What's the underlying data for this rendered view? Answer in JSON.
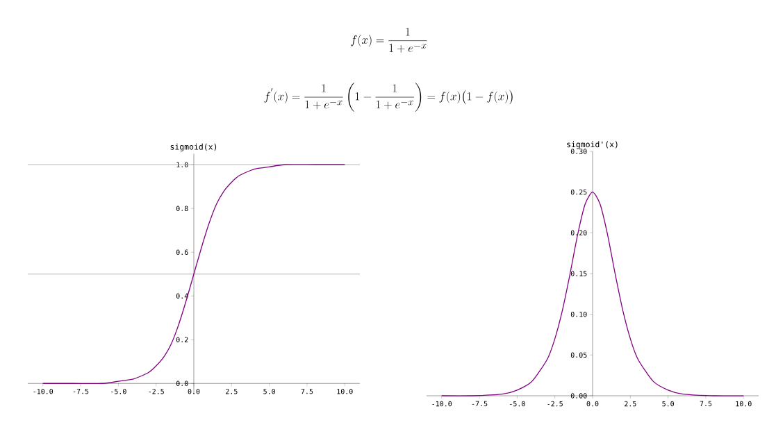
{
  "chart_data": [
    {
      "type": "line",
      "title": "sigmoid(x)",
      "color": "#800080",
      "annotations": [
        "f(x) = \\frac{1}{1+e^{-x}}",
        "f^{'}(x) = \\frac{1}{1+e^{-x}}\\left(1-\\frac{1}{1+e^{-x}}\\right) = f(x)\\big(1-f(x)\\big)"
      ],
      "x": [
        -10,
        -8,
        -6,
        -5,
        -4,
        -3,
        -2.5,
        -2,
        -1.5,
        -1,
        -0.5,
        0,
        0.5,
        1,
        1.5,
        2,
        2.5,
        3,
        4,
        5,
        6,
        8,
        10
      ],
      "values": [
        0,
        0,
        0,
        0.01,
        0.02,
        0.05,
        0.08,
        0.12,
        0.18,
        0.27,
        0.38,
        0.5,
        0.62,
        0.73,
        0.82,
        0.88,
        0.92,
        0.95,
        0.98,
        0.99,
        1.0,
        1.0,
        1.0
      ],
      "xlim": [
        -11,
        11
      ],
      "ylim": [
        -0.05,
        1.05
      ],
      "xticks": [
        {
          "value": -10,
          "label": "-10.0"
        },
        {
          "value": -7.5,
          "label": "-7.5"
        },
        {
          "value": -5,
          "label": "-5.0"
        },
        {
          "value": -2.5,
          "label": "-2.5"
        },
        {
          "value": 0,
          "label": "0.0"
        },
        {
          "value": 2.5,
          "label": "2.5"
        },
        {
          "value": 5,
          "label": "5.0"
        },
        {
          "value": 7.5,
          "label": "7.5"
        },
        {
          "value": 10,
          "label": "10.0"
        }
      ],
      "yticks": [
        {
          "value": 0,
          "label": "0.0"
        },
        0.2,
        0.4,
        0.6,
        0.8,
        {
          "value": 1,
          "label": "1.0"
        }
      ],
      "ref_lines": [
        {
          "axis": "y",
          "value": 0.5,
          "color": "#a0a0a0"
        },
        {
          "axis": "y",
          "value": 1.0,
          "color": "#a0a0a0"
        }
      ]
    },
    {
      "type": "line",
      "title": "sigmoid'(x)",
      "color": "#800080",
      "x": [
        -10,
        -8,
        -6,
        -5,
        -4,
        -3,
        -2.5,
        -2,
        -1.5,
        -1,
        -0.5,
        0,
        0.5,
        1,
        1.5,
        2,
        2.5,
        3,
        4,
        5,
        6,
        8,
        10
      ],
      "values": [
        0,
        0,
        0.002,
        0.007,
        0.018,
        0.045,
        0.07,
        0.105,
        0.149,
        0.197,
        0.235,
        0.25,
        0.235,
        0.197,
        0.149,
        0.105,
        0.07,
        0.045,
        0.018,
        0.007,
        0.002,
        0,
        0
      ],
      "xlim": [
        -11,
        11
      ],
      "ylim": [
        0,
        0.3
      ],
      "xticks": [
        {
          "value": -10,
          "label": "-10.0"
        },
        {
          "value": -7.5,
          "label": "-7.5"
        },
        {
          "value": -5,
          "label": "-5.0"
        },
        {
          "value": -2.5,
          "label": "-2.5"
        },
        {
          "value": 0,
          "label": "0.0"
        },
        {
          "value": 2.5,
          "label": "2.5"
        },
        {
          "value": 5,
          "label": "5.0"
        },
        {
          "value": 7.5,
          "label": "7.5"
        },
        {
          "value": 10,
          "label": "10.0"
        }
      ],
      "yticks": [
        {
          "value": 0,
          "label": "0.00"
        },
        0.05,
        {
          "value": 0.1,
          "label": "0.10"
        },
        0.15,
        {
          "value": 0.2,
          "label": "0.20"
        },
        0.25,
        {
          "value": 0.3,
          "label": "0.30"
        }
      ]
    }
  ]
}
